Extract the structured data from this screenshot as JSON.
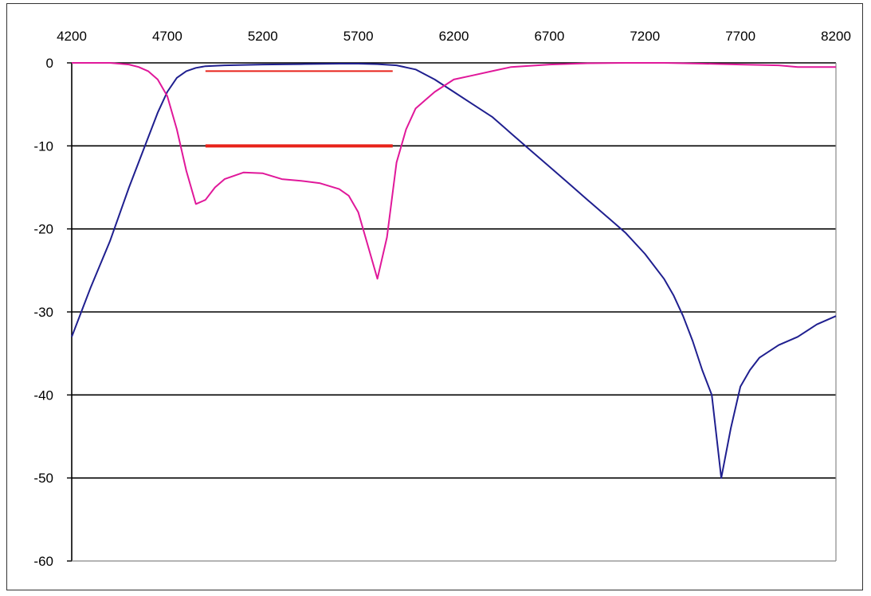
{
  "chart_data": {
    "type": "line",
    "title": "",
    "xlabel": "",
    "ylabel": "",
    "xlim": [
      4200,
      8200
    ],
    "ylim": [
      -60,
      0
    ],
    "x_ticks": [
      4200,
      4700,
      5200,
      5700,
      6200,
      6700,
      7200,
      7700,
      8200
    ],
    "y_ticks": [
      0,
      -10,
      -20,
      -30,
      -40,
      -50,
      -60
    ],
    "x_tick_labels": [
      "4200",
      "4700",
      "5200",
      "5700",
      "6200",
      "6700",
      "7200",
      "7700",
      "8200"
    ],
    "y_tick_labels": [
      "0",
      "-10",
      "-20",
      "-30",
      "-40",
      "-50",
      "-60"
    ],
    "x_axis_position": "top",
    "grid": "horizontal",
    "legend": "none",
    "series": [
      {
        "color": "#1f1f8f",
        "x": [
          4200,
          4250,
          4300,
          4400,
          4500,
          4600,
          4650,
          4700,
          4750,
          4800,
          4850,
          4900,
          5000,
          5200,
          5400,
          5600,
          5700,
          5800,
          5900,
          6000,
          6100,
          6200,
          6300,
          6400,
          6500,
          6600,
          6700,
          6800,
          6900,
          7000,
          7100,
          7200,
          7300,
          7350,
          7400,
          7450,
          7500,
          7550,
          7600,
          7650,
          7700,
          7750,
          7800,
          7900,
          8000,
          8100,
          8200
        ],
        "values": [
          -33,
          -30,
          -27,
          -21.5,
          -15,
          -9,
          -6,
          -3.5,
          -1.8,
          -1,
          -0.6,
          -0.4,
          -0.3,
          -0.2,
          -0.15,
          -0.1,
          -0.1,
          -0.15,
          -0.3,
          -0.8,
          -2,
          -3.5,
          -5,
          -6.5,
          -8.5,
          -10.5,
          -12.5,
          -14.5,
          -16.5,
          -18.5,
          -20.5,
          -23,
          -26,
          -28,
          -30.5,
          -33.5,
          -37,
          -40,
          -50,
          -44,
          -39,
          -37,
          -35.5,
          -34,
          -33,
          -31.5,
          -30.5
        ]
      },
      {
        "color": "#e0189a",
        "x": [
          4200,
          4400,
          4500,
          4550,
          4600,
          4650,
          4700,
          4750,
          4800,
          4850,
          4900,
          4950,
          5000,
          5100,
          5200,
          5300,
          5400,
          5500,
          5600,
          5650,
          5700,
          5750,
          5800,
          5850,
          5900,
          5950,
          6000,
          6050,
          6100,
          6200,
          6300,
          6400,
          6500,
          6700,
          6900,
          7100,
          7300,
          7500,
          7700,
          7900,
          8000,
          8200
        ],
        "values": [
          0,
          0,
          -0.2,
          -0.5,
          -1,
          -2,
          -4,
          -8,
          -13,
          -17,
          -16.5,
          -15,
          -14,
          -13.2,
          -13.3,
          -14,
          -14.2,
          -14.5,
          -15.2,
          -16,
          -18,
          -22,
          -26,
          -21,
          -12,
          -8,
          -5.5,
          -4.5,
          -3.5,
          -2,
          -1.5,
          -1,
          -0.5,
          -0.2,
          -0.05,
          0,
          0,
          -0.1,
          -0.2,
          -0.3,
          -0.5,
          -0.5
        ]
      }
    ],
    "reference_lines": [
      {
        "x_start": 4900,
        "x_end": 5880,
        "y": -1,
        "color": "#e8221a",
        "width": "thin"
      },
      {
        "x_start": 4900,
        "x_end": 5880,
        "y": -10,
        "color": "#e8221a",
        "width": "thick"
      }
    ],
    "colors": {
      "grid": "#000000",
      "axis": "#888888",
      "frame": "#333333"
    }
  }
}
